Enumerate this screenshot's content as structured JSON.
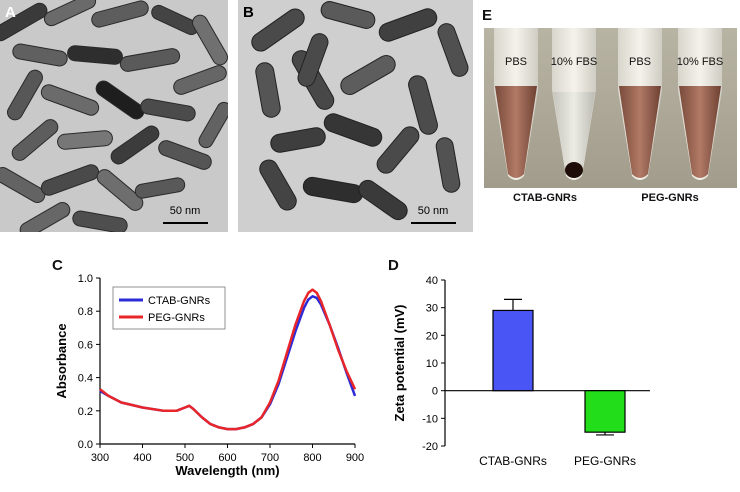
{
  "panels": {
    "a": {
      "letter": "A",
      "scalebar": "50 nm"
    },
    "b": {
      "letter": "B",
      "scalebar": "50 nm"
    },
    "c": {
      "letter": "C"
    },
    "d": {
      "letter": "D"
    },
    "e": {
      "letter": "E",
      "tube_labels": [
        "PBS",
        "10% FBS",
        "PBS",
        "10% FBS"
      ],
      "group_labels": [
        "CTAB-GNRs",
        "PEG-GNRs"
      ]
    }
  },
  "colors": {
    "ctab": "#2b2bd9",
    "peg": "#e8262a",
    "bar_ctab": "#4a55f5",
    "bar_peg": "#22dd1a"
  },
  "chart_data": [
    {
      "type": "line",
      "xlabel": "Wavelength (nm)",
      "ylabel": "Absorbance",
      "xlim": [
        300,
        900
      ],
      "ylim": [
        0,
        1.0
      ],
      "xticks": [
        300,
        400,
        500,
        600,
        700,
        800,
        900
      ],
      "yticks": [
        0.0,
        0.2,
        0.4,
        0.6,
        0.8,
        1.0
      ],
      "legend_position": "top-left",
      "series": [
        {
          "name": "CTAB-GNRs",
          "x": [
            300,
            320,
            350,
            400,
            450,
            480,
            500,
            510,
            520,
            540,
            560,
            580,
            600,
            620,
            640,
            660,
            680,
            700,
            720,
            740,
            760,
            780,
            790,
            800,
            810,
            820,
            840,
            860,
            880,
            900
          ],
          "y": [
            0.32,
            0.29,
            0.25,
            0.22,
            0.2,
            0.2,
            0.22,
            0.23,
            0.21,
            0.16,
            0.12,
            0.1,
            0.09,
            0.09,
            0.1,
            0.12,
            0.16,
            0.24,
            0.36,
            0.52,
            0.68,
            0.82,
            0.87,
            0.89,
            0.88,
            0.84,
            0.72,
            0.58,
            0.43,
            0.29
          ]
        },
        {
          "name": "PEG-GNRs",
          "x": [
            300,
            320,
            350,
            400,
            450,
            480,
            500,
            510,
            520,
            540,
            560,
            580,
            600,
            620,
            640,
            660,
            680,
            700,
            720,
            740,
            760,
            780,
            790,
            800,
            810,
            820,
            840,
            860,
            880,
            900
          ],
          "y": [
            0.33,
            0.29,
            0.25,
            0.22,
            0.2,
            0.2,
            0.22,
            0.23,
            0.21,
            0.16,
            0.12,
            0.1,
            0.09,
            0.09,
            0.1,
            0.12,
            0.16,
            0.25,
            0.38,
            0.55,
            0.72,
            0.86,
            0.91,
            0.93,
            0.91,
            0.86,
            0.72,
            0.57,
            0.44,
            0.33
          ]
        }
      ]
    },
    {
      "type": "bar",
      "ylabel": "Zeta potential (mV)",
      "ylim": [
        -20,
        40
      ],
      "yticks": [
        -20,
        -10,
        0,
        10,
        20,
        30,
        40
      ],
      "categories": [
        "CTAB-GNRs",
        "PEG-GNRs"
      ],
      "values": [
        29,
        -15
      ],
      "errors": [
        4,
        1
      ]
    }
  ]
}
